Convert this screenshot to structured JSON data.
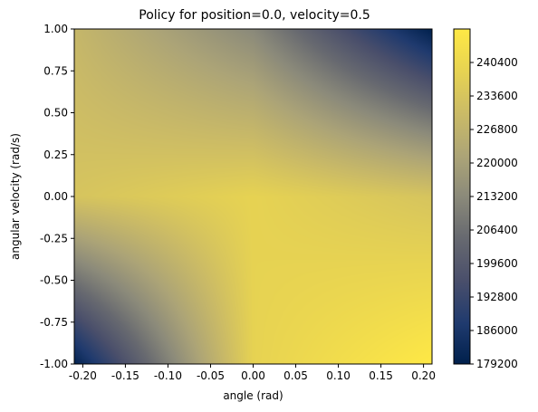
{
  "chart_data": {
    "type": "heatmap",
    "title": "Policy for position=0.0, velocity=0.5",
    "xlabel": "angle (rad)",
    "ylabel": "angular velocity (rad/s)",
    "xlim": [
      -0.21,
      0.21
    ],
    "ylim": [
      -1.0,
      1.0
    ],
    "x_ticks": [
      "-0.20",
      "-0.15",
      "-0.10",
      "-0.05",
      "0.00",
      "0.05",
      "0.10",
      "0.15",
      "0.20"
    ],
    "x_tick_values": [
      -0.2,
      -0.15,
      -0.1,
      -0.05,
      0.0,
      0.05,
      0.1,
      0.15,
      0.2
    ],
    "y_ticks": [
      "1.00",
      "0.75",
      "0.50",
      "0.25",
      "0.00",
      "-0.25",
      "-0.50",
      "-0.75",
      "-1.00"
    ],
    "y_tick_values": [
      1.0,
      0.75,
      0.5,
      0.25,
      0.0,
      -0.25,
      -0.5,
      -0.75,
      -1.0
    ],
    "colormap": "cividis",
    "colorbar": {
      "range": [
        179200,
        247200
      ],
      "ticks": [
        "240400",
        "233600",
        "226800",
        "220000",
        "213200",
        "206400",
        "199600",
        "192800",
        "186000",
        "179200"
      ],
      "tick_values": [
        240400,
        233600,
        226800,
        220000,
        213200,
        206400,
        199600,
        192800,
        186000,
        179200
      ]
    },
    "surface_samples": {
      "description_x": [
        -0.21,
        0.0,
        0.21
      ],
      "description_y": [
        1.0,
        0.0,
        -1.0
      ],
      "grid": [
        [
          228500,
          213000,
          179500
        ],
        [
          233500,
          238500,
          233500
        ],
        [
          180500,
          238500,
          247000
        ]
      ]
    },
    "colors": {
      "low": "#00204c",
      "mid": "#7c7b78",
      "high": "#ffe945"
    }
  }
}
